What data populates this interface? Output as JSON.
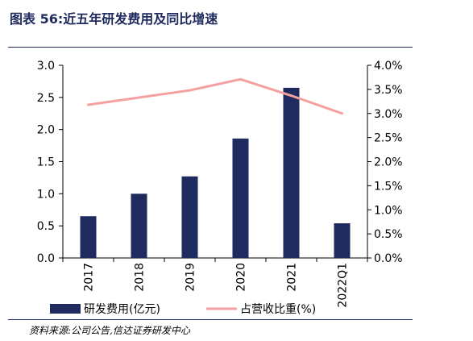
{
  "title": "图表 56:近五年研发费用及同比增速",
  "source": "资料来源:公司公告,信达证券研发中心",
  "chart_data": {
    "type": "bar",
    "categories": [
      "2017",
      "2018",
      "2019",
      "2020",
      "2021",
      "2022Q1"
    ],
    "series": [
      {
        "name": "研发费用(亿元)",
        "type": "bar",
        "axis": "left",
        "color": "#1F2A5E",
        "values": [
          0.65,
          1.0,
          1.27,
          1.86,
          2.65,
          0.54
        ]
      },
      {
        "name": "占营收比重(%)",
        "type": "line",
        "axis": "right",
        "color": "#F4A0A0",
        "values": [
          3.18,
          3.33,
          3.48,
          3.71,
          3.37,
          3.0
        ]
      }
    ],
    "yleft": {
      "min": 0,
      "max": 3.0,
      "ticks": [
        "0.0",
        "0.5",
        "1.0",
        "1.5",
        "2.0",
        "2.5",
        "3.0"
      ]
    },
    "yright": {
      "min": 0,
      "max": 4.0,
      "ticks": [
        "0.0%",
        "0.5%",
        "1.0%",
        "1.5%",
        "2.0%",
        "2.5%",
        "3.0%",
        "3.5%",
        "4.0%"
      ]
    },
    "grid": false,
    "legend": "bottom"
  }
}
